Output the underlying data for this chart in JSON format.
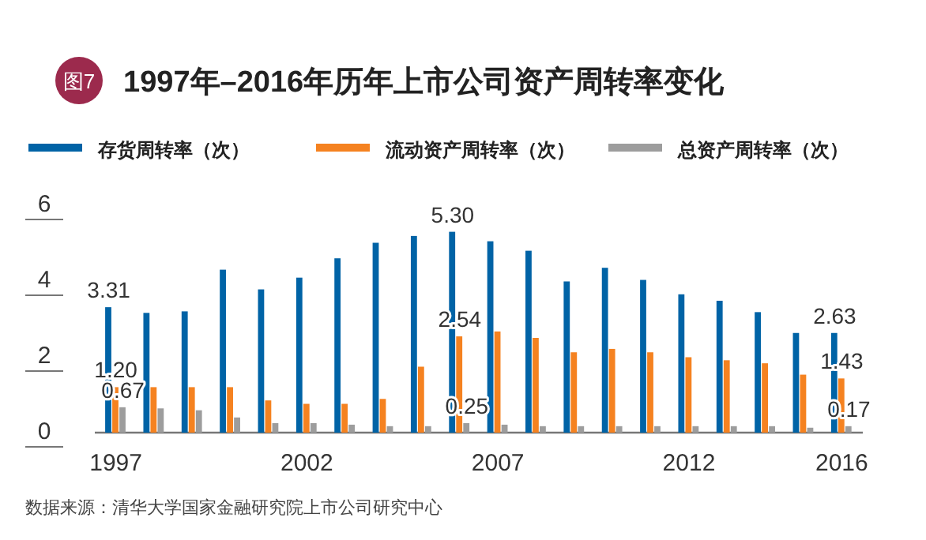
{
  "chart_data": {
    "type": "bar",
    "title": "1997年–2016年历年上市公司资产周转率变化",
    "annotations": [
      "图7",
      "数据来源：清华大学国家金融研究院上市公司研究中心"
    ],
    "categories": [
      "1997",
      null,
      null,
      null,
      null,
      "2002",
      null,
      null,
      null,
      null,
      "2007",
      null,
      null,
      null,
      null,
      "2012",
      null,
      null,
      null,
      "2016"
    ],
    "series": [
      {
        "name": "存货周转率（次）",
        "color": "#0063a6",
        "values": [
          3.31,
          3.16,
          3.2,
          4.3,
          3.78,
          4.09,
          4.6,
          5.01,
          5.19,
          5.3,
          5.05,
          4.8,
          3.99,
          4.35,
          4.03,
          3.65,
          3.48,
          3.18,
          2.63,
          2.63
        ],
        "value_labels": [
          "3.31",
          null,
          null,
          null,
          null,
          null,
          null,
          null,
          null,
          "5.30",
          null,
          null,
          null,
          null,
          null,
          null,
          null,
          null,
          null,
          "2.63"
        ]
      },
      {
        "name": "流动资产周转率（次）",
        "color": "#f58220",
        "values": [
          1.2,
          1.2,
          1.2,
          1.2,
          0.85,
          0.76,
          0.76,
          0.89,
          1.74,
          2.54,
          2.67,
          2.5,
          2.12,
          2.21,
          2.12,
          1.99,
          1.91,
          1.83,
          1.53,
          1.43
        ],
        "value_labels": [
          "1.20",
          null,
          null,
          null,
          null,
          null,
          null,
          null,
          null,
          "2.54",
          null,
          null,
          null,
          null,
          null,
          null,
          null,
          null,
          null,
          "1.43"
        ]
      },
      {
        "name": "总资产周转率（次）",
        "color": "#9d9d9d",
        "values": [
          0.67,
          0.64,
          0.59,
          0.4,
          0.25,
          0.25,
          0.21,
          0.17,
          0.17,
          0.25,
          0.21,
          0.17,
          0.17,
          0.17,
          0.17,
          0.17,
          0.17,
          0.17,
          0.13,
          0.17
        ],
        "value_labels": [
          "0.67",
          null,
          null,
          null,
          null,
          null,
          null,
          null,
          null,
          "0.25",
          null,
          null,
          null,
          null,
          null,
          null,
          null,
          null,
          null,
          "0.17"
        ]
      }
    ],
    "ylim": [
      0,
      6
    ],
    "yticks": [
      0,
      2,
      4,
      6
    ],
    "grid": false,
    "legend": "top"
  }
}
